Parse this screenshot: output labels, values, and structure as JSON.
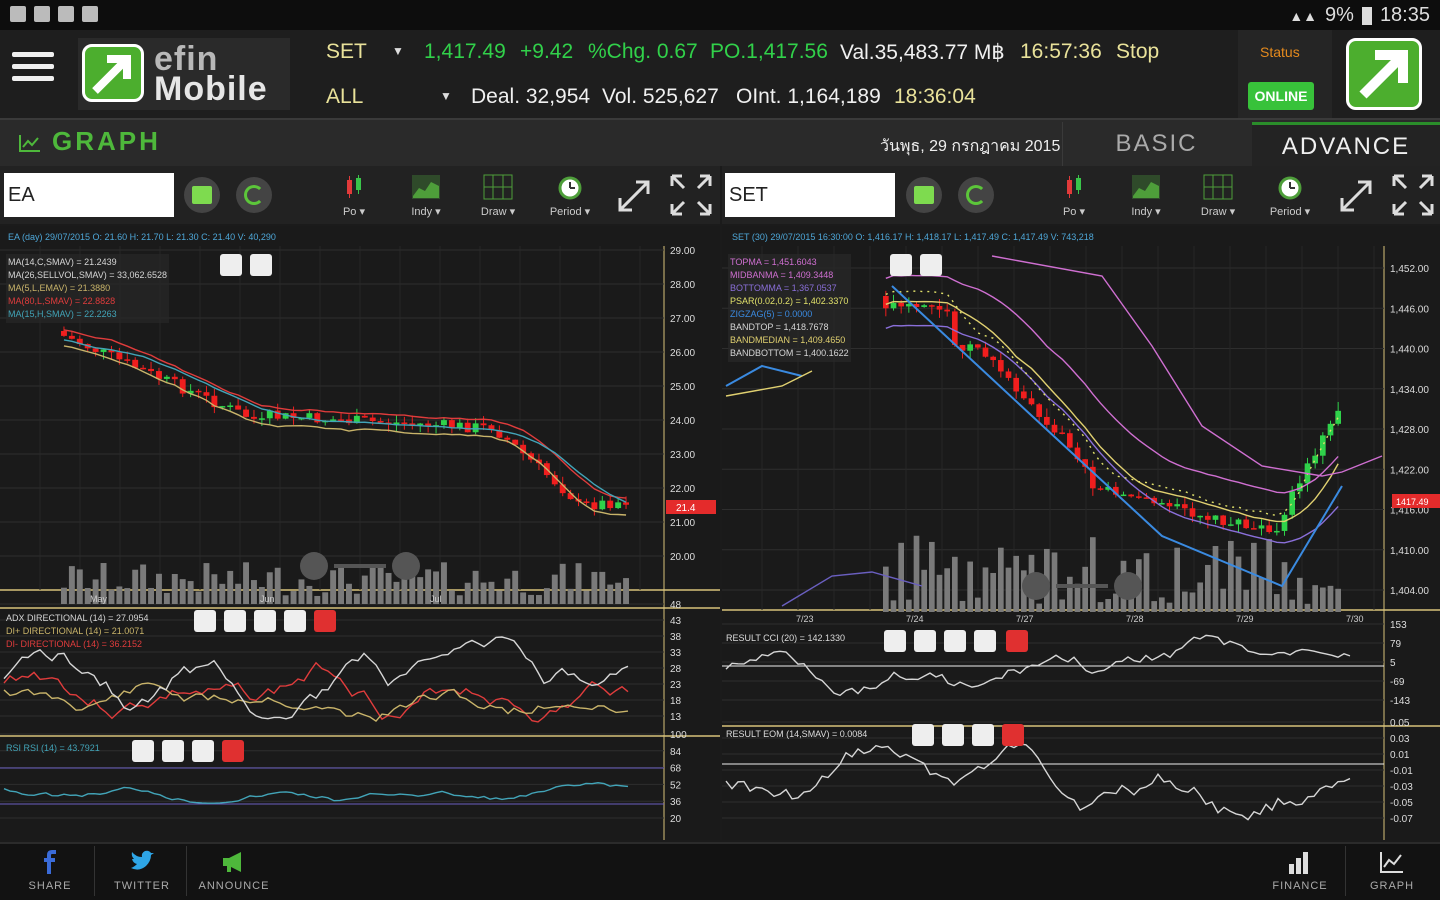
{
  "status_bar": {
    "battery": "9%",
    "time": "18:35"
  },
  "header": {
    "logo_text_top": "efin",
    "logo_text_bottom": "Mobile",
    "market": "SET",
    "index_value": "1,417.49",
    "change": "+9.42",
    "pct_change": "%Chg. 0.67",
    "po": "PO.1,417.56",
    "value": "Val.35,483.77 M฿",
    "time1": "16:57:36",
    "session": "Stop",
    "board": "ALL",
    "deal": "Deal. 32,954",
    "volume": "Vol. 525,627",
    "open_interest": "OInt. 1,164,189",
    "time2": "18:36:04",
    "status_label": "Status",
    "status_value": "ONLINE"
  },
  "tabs": {
    "page_title": "GRAPH",
    "date": "วันพุธ, 29 กรกฎาคม 2015",
    "basic": "BASIC",
    "advance": "ADVANCE"
  },
  "left_toolbar": {
    "symbol": "EA",
    "tools": [
      "Po ▾",
      "Indy ▾",
      "Draw ▾",
      "Period ▾"
    ]
  },
  "right_toolbar": {
    "symbol": "SET",
    "tools": [
      "Po ▾",
      "Indy ▾",
      "Draw ▾",
      "Period ▾"
    ]
  },
  "left_chart": {
    "header": "EA (day) 29/07/2015  O: 21.60  H: 21.70  L: 21.30  C: 21.40  V: 40,290",
    "legend": [
      {
        "text": "MA(14,C,SMAV) = 21.2439",
        "color": "#d6d6d6"
      },
      {
        "text": "MA(26,SELLVOL,SMAV) = 33,062.6528",
        "color": "#d6d6d6"
      },
      {
        "text": "MA(5,L,EMAV) = 21.3880",
        "color": "#c9b46a"
      },
      {
        "text": "MA(80,L,SMAV) = 22.8828",
        "color": "#e03c3c"
      },
      {
        "text": "MA(15,H,SMAV) = 22.2263",
        "color": "#42a4b8"
      }
    ],
    "price_axis": [
      "29.00",
      "28.00",
      "27.00",
      "26.00",
      "25.00",
      "24.00",
      "23.00",
      "22.00",
      "21.00",
      "20.00"
    ],
    "last_price": "21.4",
    "month_labels": [
      "May",
      "Jun",
      "Jul"
    ],
    "adx_legend": [
      {
        "text": "ADX DIRECTIONAL (14) = 27.0954",
        "color": "#d6d6d6"
      },
      {
        "text": "DI+ DIRECTIONAL (14) = 21.0071",
        "color": "#c9b46a"
      },
      {
        "text": "DI- DIRECTIONAL (14) = 36.2152",
        "color": "#e03c3c"
      }
    ],
    "adx_axis": [
      "48",
      "43",
      "38",
      "33",
      "28",
      "23",
      "18",
      "13"
    ],
    "rsi_legend": "RSI RSI (14) = 43.7921",
    "rsi_axis": [
      "100",
      "84",
      "68",
      "52",
      "36",
      "20"
    ]
  },
  "right_chart": {
    "header": "SET (30)  29/07/2015 16:30:00  O: 1,416.17  H: 1,418.17  L: 1,417.49  C: 1,417.49  V: 743,218",
    "legend": [
      {
        "text": "TOPMA = 1,451.6043",
        "color": "#cf6fd1"
      },
      {
        "text": "MIDBANMA = 1,409.3448",
        "color": "#cf6fd1"
      },
      {
        "text": "BOTTOMMA = 1,367.0537",
        "color": "#8a6fd9"
      },
      {
        "text": "PSAR(0.02,0.2) = 1,402.3370",
        "color": "#e0e06a"
      },
      {
        "text": "ZIGZAG(5) = 0.0000",
        "color": "#3a8ae0"
      },
      {
        "text": "BANDTOP = 1,418.7678",
        "color": "#d6d6d6"
      },
      {
        "text": "BANDMEDIAN = 1,409.4650",
        "color": "#e0d070"
      },
      {
        "text": "BANDBOTTOM = 1,400.1622",
        "color": "#d6d6d6"
      }
    ],
    "price_axis": [
      "1,452.00",
      "1,446.00",
      "1,440.00",
      "1,434.00",
      "1,428.00",
      "1,422.00",
      "1,416.00",
      "1,410.00",
      "1,404.00"
    ],
    "last_price": "1417.49",
    "date_labels": [
      "7/23",
      "7/24",
      "7/27",
      "7/28",
      "7/29",
      "7/30"
    ],
    "cci_legend": "RESULT CCI (20) = 142.1330",
    "cci_axis": [
      "153",
      "79",
      "5",
      "-69",
      "-143"
    ],
    "eom_legend": "RESULT EOM (14,SMAV) = 0.0084",
    "eom_axis": [
      "0.05",
      "0.03",
      "0.01",
      "-0.01",
      "-0.03",
      "-0.05",
      "-0.07"
    ]
  },
  "bottom_nav": {
    "left": [
      {
        "label": "SHARE"
      },
      {
        "label": "TWITTER"
      },
      {
        "label": "ANNOUNCE"
      }
    ],
    "right": [
      {
        "label": "FINANCE"
      },
      {
        "label": "GRAPH"
      }
    ]
  }
}
